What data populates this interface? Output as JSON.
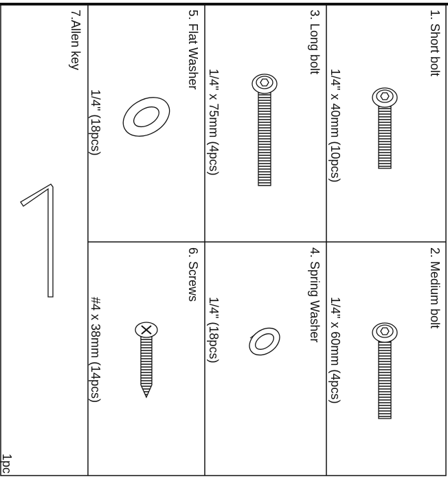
{
  "parts": [
    {
      "name": "1. Short bolt",
      "spec": "1/4\" x 40mm (10pcs)"
    },
    {
      "name": "2. Medium bolt",
      "spec": "1/4\" x 60mm (4pcs)"
    },
    {
      "name": "3. Long bolt",
      "spec": "1/4\" x 75mm (4pcs)"
    },
    {
      "name": "4. Spring Washer",
      "spec": "1/4\" (18pcs)"
    },
    {
      "name": "5. Flat Washer",
      "spec": "1/4\" (18pcs)"
    },
    {
      "name": "6. Screws",
      "spec": "#4 x 38mm (14pcs)"
    },
    {
      "name": "7.Allen key",
      "spec": "1pc"
    }
  ]
}
